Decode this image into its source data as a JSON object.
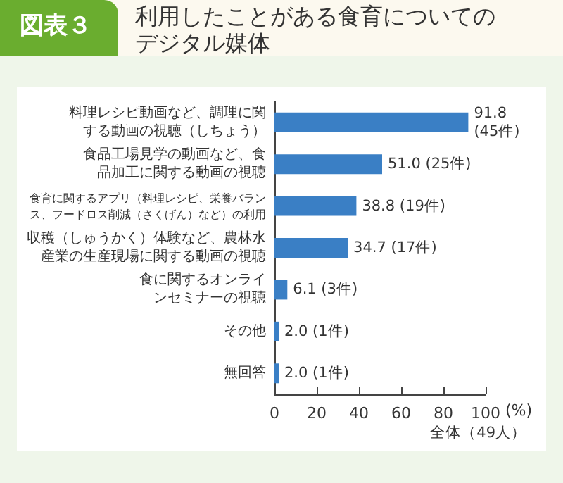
{
  "chart_data": {
    "type": "bar",
    "orientation": "horizontal",
    "title": "利用したことがある食育についてのデジタル媒体",
    "subtitle": "図表３",
    "xlabel": "(%)",
    "annotations": [
      "全体（49人）"
    ],
    "categories": [
      "料理レシピ動画など、調理に関する動画の視聴（しちょう）",
      "食品工場見学の動画など、食品加工に関する動画の視聴",
      "食育に関するアプリ（料理レシピ、栄養バランス、フードロス削減（さくげん）など）の利用",
      "収穫（しゅうかく）体験など、農林水産業の生産現場に関する動画の視聴",
      "食に関するオンラインセミナーの視聴",
      "その他",
      "無回答"
    ],
    "values": [
      91.8,
      51.0,
      38.8,
      34.7,
      6.1,
      2.0,
      2.0
    ],
    "value_labels": [
      "91.8\n(45件)",
      "51.0 (25件)",
      "38.8 (19件)",
      "34.7 (17件)",
      "6.1 (3件)",
      "2.0 (1件)",
      "2.0 (1件)"
    ],
    "color": "#3a7fc5",
    "xlim": [
      0,
      100
    ],
    "xticks": [
      0,
      20,
      40,
      60,
      80,
      100
    ]
  }
}
